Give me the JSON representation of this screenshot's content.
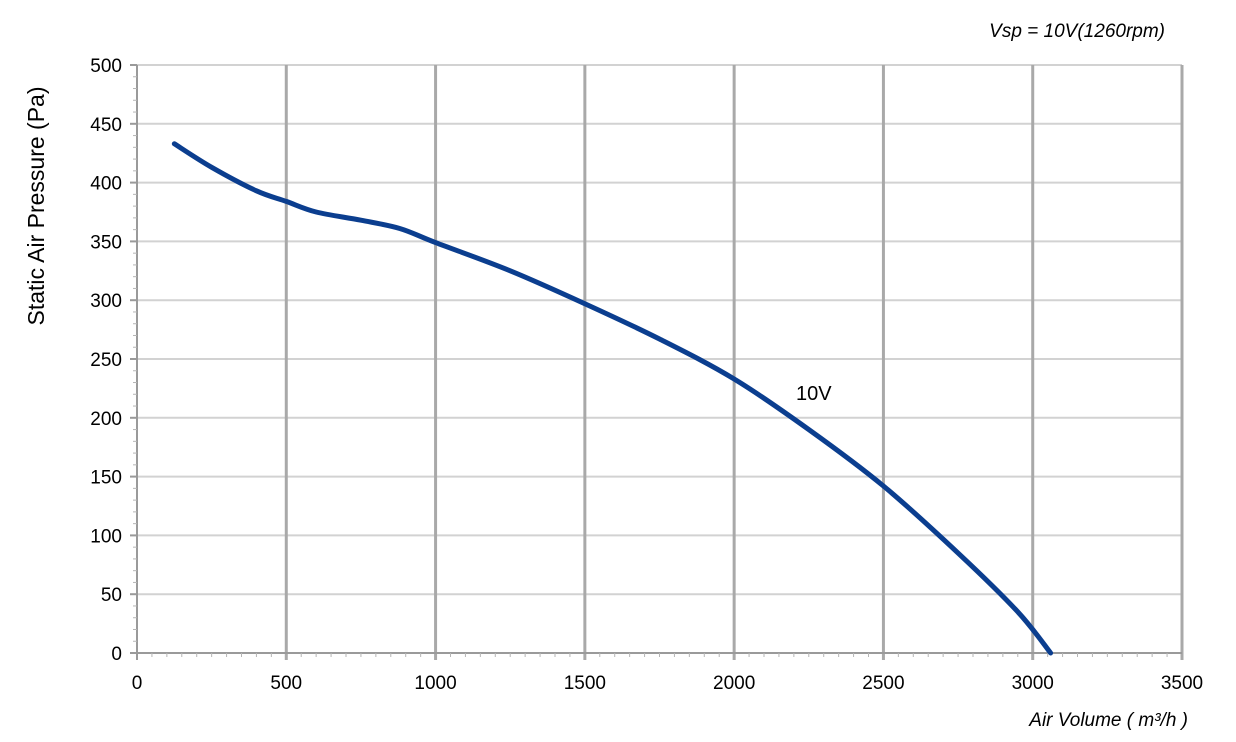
{
  "chart_data": {
    "type": "line",
    "subtitle": "Vsp = 10V(1260rpm)",
    "xlabel": "Air Volume ( m³/h )",
    "ylabel": "Static Air Pressure  (Pa)",
    "xlim": [
      0,
      3500
    ],
    "ylim": [
      0,
      500
    ],
    "x_ticks": [
      "0",
      "500",
      "1000",
      "1500",
      "2000",
      "2500",
      "3000",
      "3500"
    ],
    "y_ticks": [
      "0",
      "50",
      "100",
      "150",
      "200",
      "250",
      "300",
      "350",
      "400",
      "450",
      "500"
    ],
    "grid": true,
    "series": [
      {
        "name": "10V",
        "color": "#0b3e8f",
        "x": [
          125,
          250,
          400,
          500,
          600,
          750,
          880,
          1000,
          1250,
          1500,
          1750,
          2000,
          2250,
          2500,
          2750,
          2950,
          3060
        ],
        "y": [
          433,
          413,
          393,
          384,
          375,
          368,
          361,
          349,
          325,
          297,
          267,
          233,
          190,
          142,
          85,
          35,
          0
        ]
      }
    ]
  }
}
